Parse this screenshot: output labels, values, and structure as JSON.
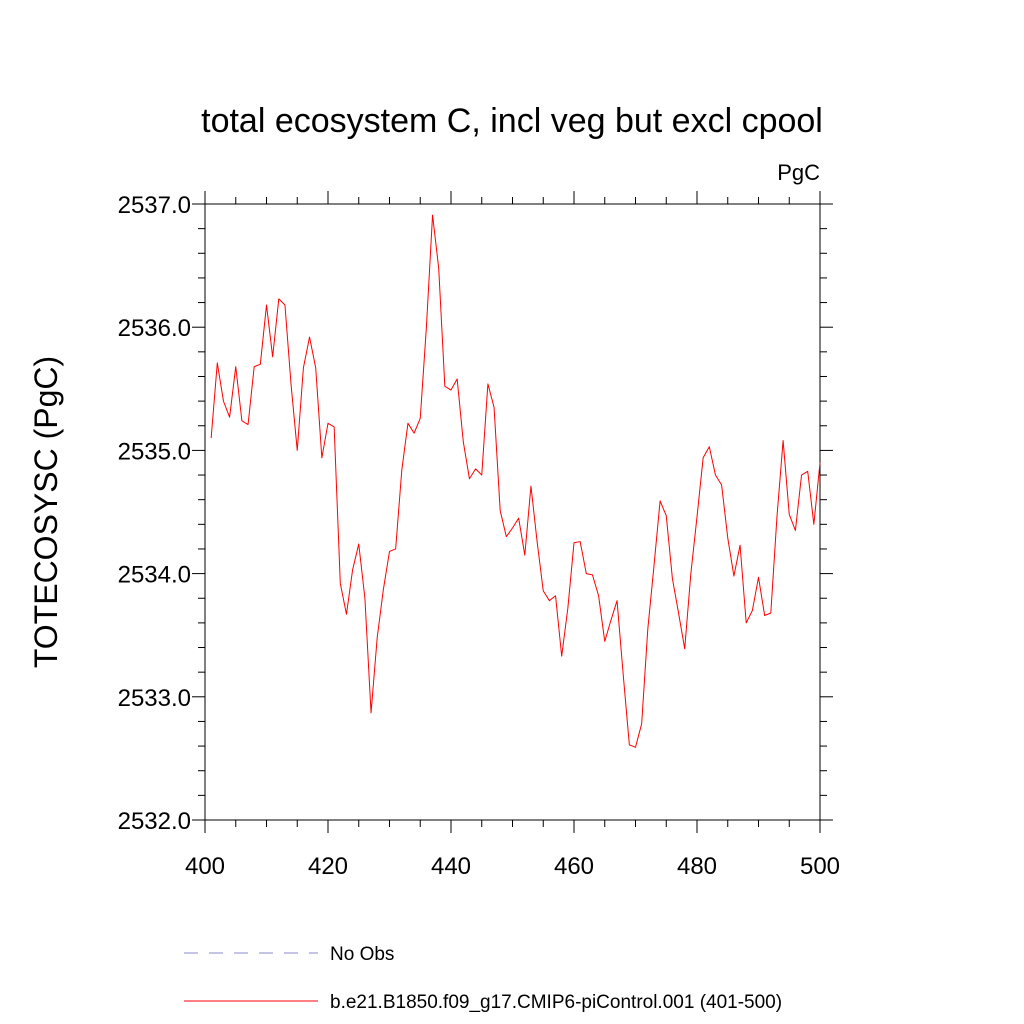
{
  "chart_data": {
    "type": "line",
    "title": "total ecosystem C, incl veg but excl cpool",
    "units": "PgC",
    "ylabel": "TOTECOSYSC  (PgC)",
    "xlabel": "",
    "xlim": [
      400,
      500
    ],
    "ylim": [
      2532.0,
      2537.0
    ],
    "xticks": [
      400,
      420,
      440,
      460,
      480,
      500
    ],
    "xtick_labels": [
      "400",
      "420",
      "440",
      "460",
      "480",
      "500"
    ],
    "yticks": [
      2532.0,
      2533.0,
      2534.0,
      2535.0,
      2536.0,
      2537.0
    ],
    "ytick_labels": [
      "2532.0",
      "2533.0",
      "2534.0",
      "2535.0",
      "2536.0",
      "2537.0"
    ],
    "grid": false,
    "legend_placement": "bottom",
    "legend": [
      {
        "label": "No Obs",
        "style": "dashed",
        "color": "#8888cc"
      },
      {
        "label": "b.e21.B1850.f09_g17.CMIP6-piControl.001 (401-500)",
        "style": "solid",
        "color": "#ff0000"
      }
    ],
    "series": [
      {
        "name": "b.e21.B1850.f09_g17.CMIP6-piControl.001 (401-500)",
        "color": "#ff0000",
        "x": [
          401,
          402,
          403,
          404,
          405,
          406,
          407,
          408,
          409,
          410,
          411,
          412,
          413,
          414,
          415,
          416,
          417,
          418,
          419,
          420,
          421,
          422,
          423,
          424,
          425,
          426,
          427,
          428,
          429,
          430,
          431,
          432,
          433,
          434,
          435,
          436,
          437,
          438,
          439,
          440,
          441,
          442,
          443,
          444,
          445,
          446,
          447,
          448,
          449,
          450,
          451,
          452,
          453,
          454,
          455,
          456,
          457,
          458,
          459,
          460,
          461,
          462,
          463,
          464,
          465,
          466,
          467,
          468,
          469,
          470,
          471,
          472,
          473,
          474,
          475,
          476,
          477,
          478,
          479,
          480,
          481,
          482,
          483,
          484,
          485,
          486,
          487,
          488,
          489,
          490,
          491,
          492,
          493,
          494,
          495,
          496,
          497,
          498,
          499,
          500
        ],
        "values": [
          2535.1,
          2535.71,
          2535.4,
          2535.27,
          2535.68,
          2535.24,
          2535.21,
          2535.68,
          2535.7,
          2536.18,
          2535.76,
          2536.23,
          2536.18,
          2535.53,
          2535.0,
          2535.67,
          2535.92,
          2535.67,
          2534.94,
          2535.22,
          2535.19,
          2533.92,
          2533.67,
          2534.03,
          2534.24,
          2533.8,
          2532.87,
          2533.48,
          2533.87,
          2534.18,
          2534.2,
          2534.84,
          2535.22,
          2535.14,
          2535.26,
          2536.0,
          2536.91,
          2536.48,
          2535.52,
          2535.49,
          2535.58,
          2535.07,
          2534.77,
          2534.85,
          2534.8,
          2535.54,
          2535.35,
          2534.51,
          2534.3,
          2534.37,
          2534.45,
          2534.15,
          2534.71,
          2534.26,
          2533.86,
          2533.78,
          2533.82,
          2533.33,
          2533.72,
          2534.25,
          2534.26,
          2534.0,
          2533.99,
          2533.82,
          2533.45,
          2533.62,
          2533.78,
          2533.18,
          2532.61,
          2532.59,
          2532.78,
          2533.55,
          2534.06,
          2534.59,
          2534.47,
          2533.96,
          2533.68,
          2533.39,
          2534.0,
          2534.46,
          2534.94,
          2535.03,
          2534.8,
          2534.72,
          2534.29,
          2533.98,
          2534.23,
          2533.6,
          2533.7,
          2533.97,
          2533.66,
          2533.68,
          2534.46,
          2535.08,
          2534.48,
          2534.35,
          2534.8,
          2534.83,
          2534.4,
          2534.9
        ]
      }
    ]
  }
}
